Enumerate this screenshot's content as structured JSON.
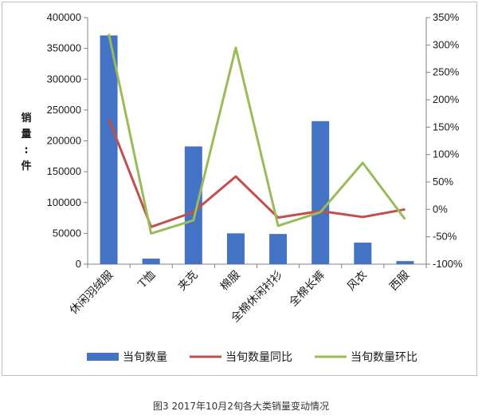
{
  "chart_data": {
    "type": "bar",
    "categories": [
      "休闲羽绒服",
      "T恤",
      "夹克",
      "棉服",
      "全棉休闲衬衫",
      "全棉长裤",
      "风衣",
      "西服"
    ],
    "series": [
      {
        "name": "当旬数量",
        "type": "bar",
        "axis": "left",
        "color": "#4472C4",
        "values": [
          371000,
          9000,
          191000,
          50000,
          49000,
          232000,
          35000,
          5000
        ]
      },
      {
        "name": "当旬数量同比",
        "type": "line",
        "axis": "right",
        "color": "#C0504D",
        "values": [
          1.65,
          -0.32,
          -0.05,
          0.6,
          -0.15,
          -0.03,
          -0.14,
          0.0
        ]
      },
      {
        "name": "当旬数量环比",
        "type": "line",
        "axis": "right",
        "color": "#9BBB59",
        "values": [
          3.2,
          -0.44,
          -0.2,
          2.95,
          -0.3,
          -0.05,
          0.85,
          -0.18
        ]
      }
    ],
    "ylabel_chars": [
      "销",
      "量",
      ":",
      "件"
    ],
    "ylim_left": [
      0,
      400000
    ],
    "yticks_left": [
      "400000",
      "350000",
      "300000",
      "250000",
      "200000",
      "150000",
      "100000",
      "50000",
      "0"
    ],
    "ylim_right": [
      -1.0,
      3.5
    ],
    "yticks_right": [
      "350%",
      "300%",
      "250%",
      "200%",
      "150%",
      "100%",
      "50%",
      "0%",
      "-50%",
      "-100%"
    ],
    "grid": false,
    "legend_position": "bottom",
    "caption": "图3   2017年10月2旬各大类销量变动情况"
  }
}
